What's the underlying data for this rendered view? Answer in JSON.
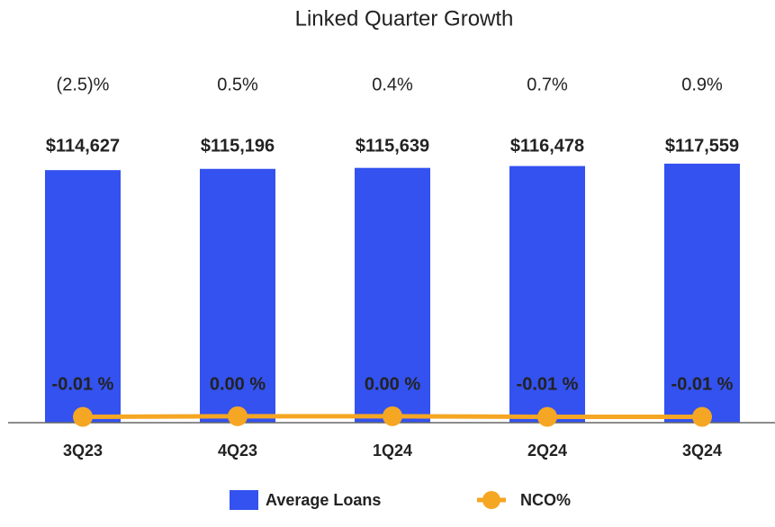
{
  "chart_data": {
    "type": "bar",
    "title": "Linked Quarter Growth",
    "annotations": [
      "(2.5)%",
      "0.5%",
      "0.4%",
      "0.7%",
      "0.9%"
    ],
    "categories": [
      "3Q23",
      "4Q23",
      "1Q24",
      "2Q24",
      "3Q24"
    ],
    "series": [
      {
        "name": "Average Loans",
        "color": "#3352ef",
        "values": [
          114627,
          115196,
          115639,
          116478,
          117559
        ],
        "value_labels": [
          "$114,627",
          "$115,196",
          "$115,639",
          "$116,478",
          "$117,559"
        ]
      },
      {
        "name": "NCO%",
        "type": "line",
        "axis": "y2",
        "color": "#f5a623",
        "values": [
          -0.01,
          0.0,
          0.0,
          -0.01,
          -0.01
        ],
        "value_labels": [
          "-0.01 %",
          "0.00 %",
          "0.00 %",
          "-0.01 %",
          "-0.01 %"
        ]
      }
    ],
    "ylim": [
      0,
      120000
    ],
    "y2lim": [
      -0.1,
      4
    ]
  }
}
